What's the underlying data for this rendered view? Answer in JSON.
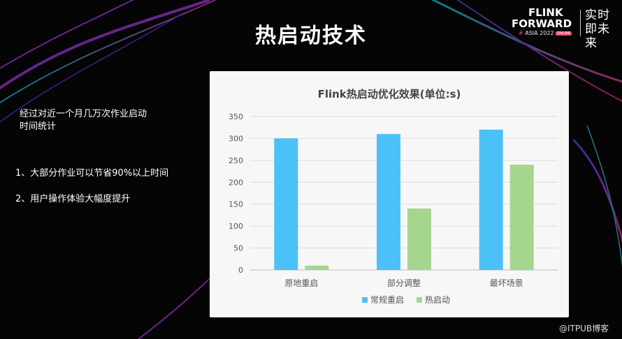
{
  "slide": {
    "title": "热启动技术",
    "intro_line1": "经过对近一个月几万次作业启动",
    "intro_line2": "时间统计",
    "point1": "1、大部分作业可以节省90%以上时间",
    "point2": "2、用户操作体验大幅度提升"
  },
  "logo": {
    "word1": "FLINK",
    "word2": "FORWARD",
    "hash": "#",
    "subtitle": "ASIA 2022",
    "badge": "ONLINE",
    "tagline": "实时即未来"
  },
  "watermark": "@ITPUB博客",
  "colors": {
    "series1": "#4cc1f7",
    "series2": "#a6d58e",
    "background": "#050505",
    "panel": "#f7f7f7"
  },
  "chart_data": {
    "type": "bar",
    "title": "Flink热启动优化效果(单位:s)",
    "categories": [
      "原地重启",
      "部分调整",
      "最坏场景"
    ],
    "series": [
      {
        "name": "常规重启",
        "values": [
          300,
          310,
          320
        ]
      },
      {
        "name": "热启动",
        "values": [
          10,
          140,
          240
        ]
      }
    ],
    "ylim": [
      0,
      350
    ],
    "yticks": [
      "0",
      "50",
      "100",
      "150",
      "200",
      "250",
      "300",
      "350"
    ],
    "xlabel": "",
    "ylabel": "",
    "grid": true,
    "legend": "bottom"
  }
}
